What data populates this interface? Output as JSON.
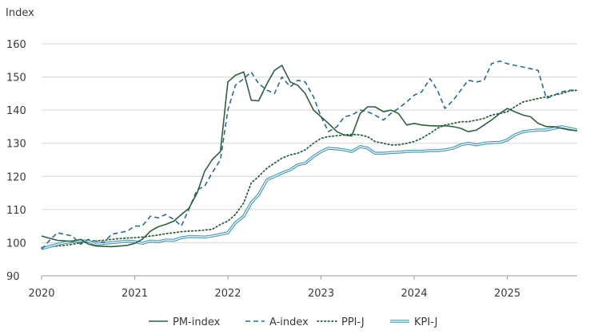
{
  "chart_data": {
    "type": "line",
    "ylabel": "Index",
    "xlabel": "",
    "ylim": [
      90,
      160
    ],
    "xlim": [
      2020,
      2025.75
    ],
    "yticks": [
      90,
      100,
      110,
      120,
      130,
      140,
      150,
      160
    ],
    "xticks": [
      2020,
      2021,
      2022,
      2023,
      2024,
      2025
    ],
    "xtick_labels": [
      "2020",
      "2021",
      "2022",
      "2023",
      "2024",
      "2025"
    ],
    "grid": "horizontal",
    "legend_position": "bottom",
    "series": [
      {
        "name": "PM-index",
        "color": "#2f5f3f",
        "style": "solid",
        "x": [
          2020.0,
          2020.17,
          2020.33,
          2020.42,
          2020.5,
          2020.58,
          2020.75,
          2020.92,
          2021.0,
          2021.08,
          2021.17,
          2021.25,
          2021.33,
          2021.42,
          2021.5,
          2021.58,
          2021.67,
          2021.75,
          2021.83,
          2021.92,
          2022.0,
          2022.08,
          2022.17,
          2022.25,
          2022.33,
          2022.42,
          2022.5,
          2022.58,
          2022.67,
          2022.75,
          2022.83,
          2022.92,
          2023.0,
          2023.08,
          2023.17,
          2023.25,
          2023.33,
          2023.42,
          2023.5,
          2023.58,
          2023.67,
          2023.75,
          2023.83,
          2023.92,
          2024.0,
          2024.08,
          2024.17,
          2024.25,
          2024.33,
          2024.42,
          2024.5,
          2024.58,
          2024.67,
          2024.75,
          2024.83,
          2024.92,
          2025.0,
          2025.08,
          2025.17,
          2025.25,
          2025.33,
          2025.42,
          2025.5,
          2025.58,
          2025.67,
          2025.75
        ],
        "values": [
          102,
          100.7,
          100.4,
          101,
          99.6,
          99,
          98.8,
          99.2,
          99.8,
          101,
          103.5,
          104.8,
          105.5,
          106.5,
          108.5,
          110.3,
          115,
          121.5,
          125,
          127.5,
          148.5,
          150.5,
          151.5,
          143,
          142.8,
          148,
          152,
          153.5,
          148.5,
          147.5,
          145,
          140,
          138,
          136,
          133.5,
          132.5,
          132.2,
          139,
          141,
          141,
          139.5,
          140,
          139,
          135.5,
          136,
          135.5,
          135.3,
          135.2,
          135.3,
          135,
          134.5,
          133.5,
          134,
          135.5,
          137,
          139,
          140.5,
          139.5,
          138.5,
          138,
          136,
          135,
          135,
          134.5,
          134,
          133.8
        ]
      },
      {
        "name": "A-index",
        "color": "#2a6b8a",
        "style": "dashed",
        "x": [
          2020.0,
          2020.08,
          2020.17,
          2020.25,
          2020.33,
          2020.42,
          2020.5,
          2020.58,
          2020.67,
          2020.75,
          2020.83,
          2020.92,
          2021.0,
          2021.08,
          2021.17,
          2021.25,
          2021.33,
          2021.42,
          2021.5,
          2021.58,
          2021.67,
          2021.75,
          2021.83,
          2021.92,
          2022.0,
          2022.08,
          2022.17,
          2022.25,
          2022.33,
          2022.42,
          2022.5,
          2022.58,
          2022.67,
          2022.75,
          2022.83,
          2022.92,
          2023.0,
          2023.08,
          2023.17,
          2023.25,
          2023.33,
          2023.42,
          2023.5,
          2023.58,
          2023.67,
          2023.75,
          2023.83,
          2023.92,
          2024.0,
          2024.08,
          2024.17,
          2024.25,
          2024.33,
          2024.42,
          2024.5,
          2024.58,
          2024.67,
          2024.75,
          2024.83,
          2024.92,
          2025.0,
          2025.08,
          2025.17,
          2025.25,
          2025.33,
          2025.42,
          2025.5,
          2025.58,
          2025.67,
          2025.75
        ],
        "values": [
          98,
          100.5,
          103,
          102.5,
          102,
          99.5,
          101,
          100.5,
          100,
          102.5,
          103,
          103.5,
          105,
          105,
          108,
          107.5,
          108.5,
          107,
          105,
          110,
          116,
          117,
          121,
          125,
          140,
          147.5,
          149.5,
          151.5,
          148,
          146,
          145,
          150,
          147,
          149,
          148.5,
          144,
          138,
          133.5,
          135,
          138,
          138.5,
          140,
          139.5,
          138.5,
          137,
          139,
          140.5,
          142.5,
          144.5,
          145.5,
          149.5,
          146,
          140.5,
          143,
          146,
          149,
          148.5,
          149,
          154,
          154.8,
          154,
          153.5,
          153,
          152.5,
          152,
          143.5,
          144.5,
          145.5,
          146,
          146
        ]
      },
      {
        "name": "PPI-J",
        "color": "#2f5f3f",
        "style": "dotted",
        "x": [
          2020.0,
          2020.08,
          2020.17,
          2020.25,
          2020.33,
          2020.42,
          2020.5,
          2020.58,
          2020.67,
          2020.75,
          2020.83,
          2020.92,
          2021.0,
          2021.08,
          2021.17,
          2021.25,
          2021.33,
          2021.42,
          2021.5,
          2021.58,
          2021.67,
          2021.75,
          2021.83,
          2021.92,
          2022.0,
          2022.08,
          2022.17,
          2022.25,
          2022.33,
          2022.42,
          2022.5,
          2022.58,
          2022.67,
          2022.75,
          2022.83,
          2022.92,
          2023.0,
          2023.08,
          2023.17,
          2023.25,
          2023.33,
          2023.42,
          2023.5,
          2023.58,
          2023.67,
          2023.75,
          2023.83,
          2023.92,
          2024.0,
          2024.08,
          2024.17,
          2024.25,
          2024.33,
          2024.42,
          2024.5,
          2024.58,
          2024.67,
          2024.75,
          2024.83,
          2024.92,
          2025.0,
          2025.08,
          2025.17,
          2025.25,
          2025.33,
          2025.42,
          2025.5,
          2025.58,
          2025.67,
          2025.75
        ],
        "values": [
          98.5,
          98.7,
          99,
          99.2,
          99.5,
          100,
          100.2,
          100.5,
          100.7,
          101,
          101.2,
          101.4,
          101.5,
          101.7,
          102,
          102.3,
          102.7,
          103,
          103.3,
          103.5,
          103.6,
          103.8,
          104,
          105.5,
          106.5,
          108.5,
          112,
          118,
          120,
          122.5,
          124,
          125.5,
          126.5,
          127,
          128,
          130,
          131.5,
          132,
          132.3,
          132.5,
          132.7,
          132.5,
          132,
          130.5,
          130,
          129.5,
          129.5,
          130,
          130.5,
          131.5,
          133,
          134.5,
          135.5,
          136,
          136.5,
          136.5,
          137,
          137.5,
          138.5,
          139,
          139.5,
          141,
          142.5,
          143,
          143.5,
          144,
          144.5,
          145,
          145.8,
          146
        ]
      },
      {
        "name": "KPI-J",
        "color": "#4a9ab8",
        "style": "double",
        "x": [
          2020.0,
          2020.08,
          2020.17,
          2020.25,
          2020.33,
          2020.42,
          2020.5,
          2020.58,
          2020.67,
          2020.75,
          2020.83,
          2020.92,
          2021.0,
          2021.08,
          2021.17,
          2021.25,
          2021.33,
          2021.42,
          2021.5,
          2021.58,
          2021.67,
          2021.75,
          2021.83,
          2021.92,
          2022.0,
          2022.08,
          2022.17,
          2022.25,
          2022.33,
          2022.42,
          2022.5,
          2022.58,
          2022.67,
          2022.75,
          2022.83,
          2022.92,
          2023.0,
          2023.08,
          2023.17,
          2023.25,
          2023.33,
          2023.42,
          2023.5,
          2023.58,
          2023.67,
          2023.75,
          2023.83,
          2023.92,
          2024.0,
          2024.08,
          2024.17,
          2024.25,
          2024.33,
          2024.42,
          2024.5,
          2024.58,
          2024.67,
          2024.75,
          2024.83,
          2024.92,
          2025.0,
          2025.08,
          2025.17,
          2025.25,
          2025.33,
          2025.42,
          2025.5,
          2025.58,
          2025.67,
          2025.75
        ],
        "values": [
          98.2,
          98.8,
          99.5,
          100,
          100.3,
          100.6,
          100.5,
          99.5,
          99.8,
          100,
          100.2,
          100.5,
          100.3,
          99.8,
          100.5,
          100.3,
          100.8,
          100.7,
          101.5,
          101.8,
          101.8,
          101.7,
          102,
          102.5,
          103,
          106,
          108,
          112,
          114.5,
          119,
          120,
          121,
          122,
          123.5,
          124,
          126,
          127.5,
          128.5,
          128.3,
          128,
          127.5,
          129,
          128.5,
          127,
          127,
          127.2,
          127.3,
          127.5,
          127.6,
          127.6,
          127.8,
          127.8,
          128,
          128.5,
          129.5,
          130,
          129.5,
          130,
          130.2,
          130.3,
          131,
          132.5,
          133.5,
          133.8,
          134,
          134,
          134.5,
          135,
          134.5,
          134
        ]
      }
    ]
  }
}
